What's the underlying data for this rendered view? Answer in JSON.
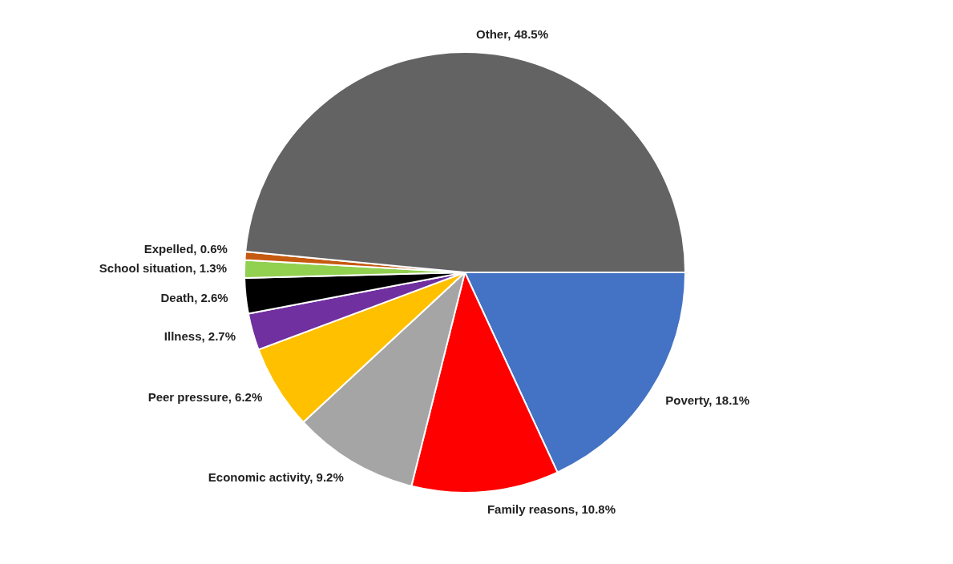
{
  "chart_data": {
    "type": "pie",
    "categories": [
      "Poverty",
      "Family reasons",
      "Economic activity",
      "Peer pressure",
      "Illness",
      "Death",
      "School situation",
      "Expelled",
      "Other"
    ],
    "values": [
      18.1,
      10.8,
      9.2,
      6.2,
      2.7,
      2.6,
      1.3,
      0.6,
      48.5
    ],
    "value_labels": [
      "18.1%",
      "10.8%",
      "9.2%",
      "6.2%",
      "2.7%",
      "2.6%",
      "1.3%",
      "0.6%",
      "48.5%"
    ],
    "colors": [
      "#4472c4",
      "#ff0000",
      "#a5a5a5",
      "#ffc000",
      "#7030a0",
      "#000000",
      "#92d050",
      "#c55a11",
      "#636363"
    ],
    "legend": false
  }
}
